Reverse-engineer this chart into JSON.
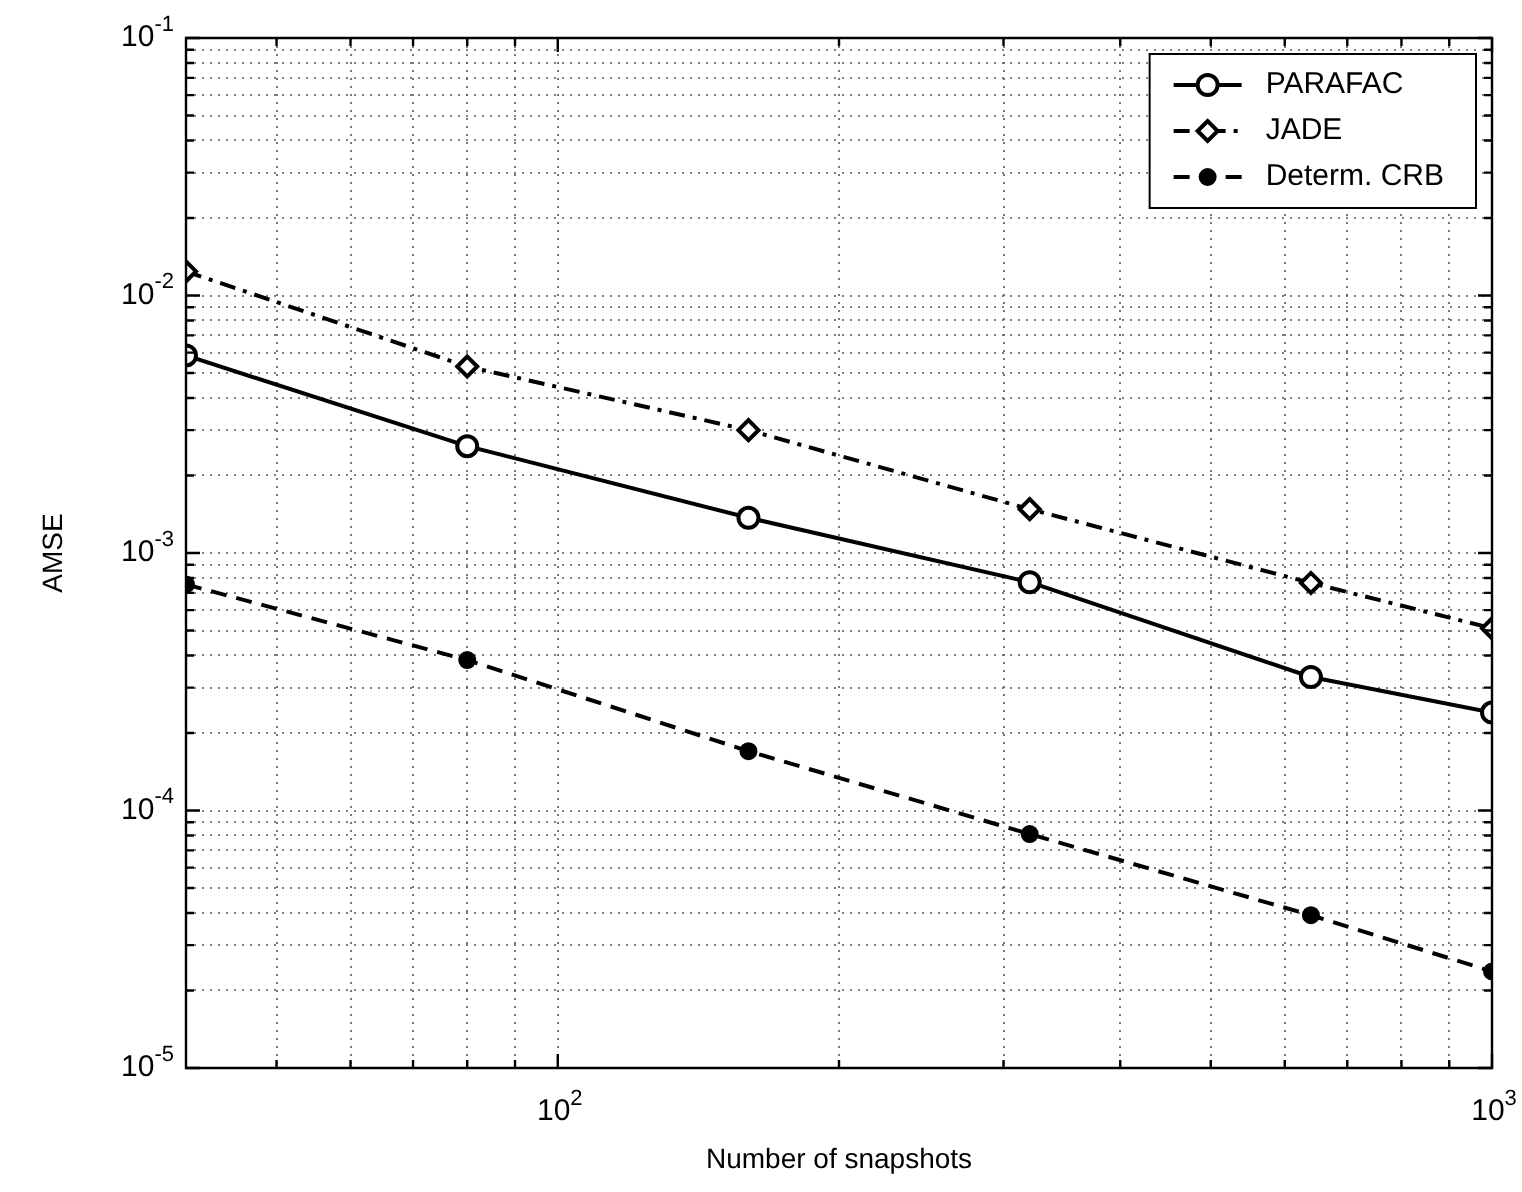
{
  "chart_data": {
    "type": "line",
    "xlabel": "Number of snapshots",
    "ylabel": "AMSE",
    "log": "xy",
    "grid": true,
    "legend": "top right",
    "x": [
      40,
      80,
      160,
      320,
      640,
      1000
    ],
    "xlim": [
      40,
      1000
    ],
    "xticks": [
      {
        "value": 50,
        "label": null
      },
      {
        "value": 60,
        "label": null
      },
      {
        "value": 70,
        "label": null
      },
      {
        "value": 80,
        "label": null
      },
      {
        "value": 90,
        "label": null
      },
      {
        "value": 100,
        "label": "10$^{2}$"
      },
      {
        "value": 200,
        "label": null
      },
      {
        "value": 300,
        "label": null
      },
      {
        "value": 400,
        "label": null
      },
      {
        "value": 500,
        "label": null
      },
      {
        "value": 600,
        "label": null
      },
      {
        "value": 700,
        "label": null
      },
      {
        "value": 800,
        "label": null
      },
      {
        "value": 900,
        "label": null
      },
      {
        "value": 1000,
        "label": "10$^{3}$"
      }
    ],
    "ylim": [
      1e-05,
      0.1
    ],
    "yticks": [
      {
        "value": 1e-05,
        "label": "10$^{-5}$"
      },
      {
        "value": 2e-05,
        "label": null
      },
      {
        "value": 3e-05,
        "label": null
      },
      {
        "value": 4e-05,
        "label": null
      },
      {
        "value": 5e-05,
        "label": null
      },
      {
        "value": 6e-05,
        "label": null
      },
      {
        "value": 7e-05,
        "label": null
      },
      {
        "value": 8e-05,
        "label": null
      },
      {
        "value": 9e-05,
        "label": null
      },
      {
        "value": 0.0001,
        "label": "10$^{-4}$"
      },
      {
        "value": 0.0002,
        "label": null
      },
      {
        "value": 0.0003,
        "label": null
      },
      {
        "value": 0.0004,
        "label": null
      },
      {
        "value": 0.0005,
        "label": null
      },
      {
        "value": 0.0006,
        "label": null
      },
      {
        "value": 0.0007,
        "label": null
      },
      {
        "value": 0.0008,
        "label": null
      },
      {
        "value": 0.0009,
        "label": null
      },
      {
        "value": 0.001,
        "label": "10$^{-3}$"
      },
      {
        "value": 0.002,
        "label": null
      },
      {
        "value": 0.003,
        "label": null
      },
      {
        "value": 0.004,
        "label": null
      },
      {
        "value": 0.005,
        "label": null
      },
      {
        "value": 0.006,
        "label": null
      },
      {
        "value": 0.007,
        "label": null
      },
      {
        "value": 0.008,
        "label": null
      },
      {
        "value": 0.009,
        "label": null
      },
      {
        "value": 0.01,
        "label": "10$^{-2}$"
      },
      {
        "value": 0.02,
        "label": null
      },
      {
        "value": 0.03,
        "label": null
      },
      {
        "value": 0.04,
        "label": null
      },
      {
        "value": 0.05,
        "label": null
      },
      {
        "value": 0.06,
        "label": null
      },
      {
        "value": 0.07,
        "label": null
      },
      {
        "value": 0.08,
        "label": null
      },
      {
        "value": 0.09,
        "label": null
      },
      {
        "value": 0.1,
        "label": "10$^{-1}$"
      }
    ],
    "series": [
      {
        "name": "PARAFAC",
        "color": "#000000",
        "marker": "circle",
        "line_style": "solid",
        "values": [
          0.00585,
          0.0026,
          0.00137,
          0.00077,
          0.00033,
          0.00024
        ]
      },
      {
        "name": "JADE",
        "color": "#000000",
        "marker": "diamond",
        "line_style": "dashdot",
        "values": [
          0.0124,
          0.0053,
          0.003,
          0.00148,
          0.000765,
          0.00051
        ]
      },
      {
        "name": "Determ. CRB",
        "color": "#000000",
        "marker": "dot",
        "line_style": "dashed",
        "values": [
          0.000755,
          0.000384,
          0.00017,
          8.1e-05,
          3.92e-05,
          2.37e-05
        ]
      }
    ]
  }
}
